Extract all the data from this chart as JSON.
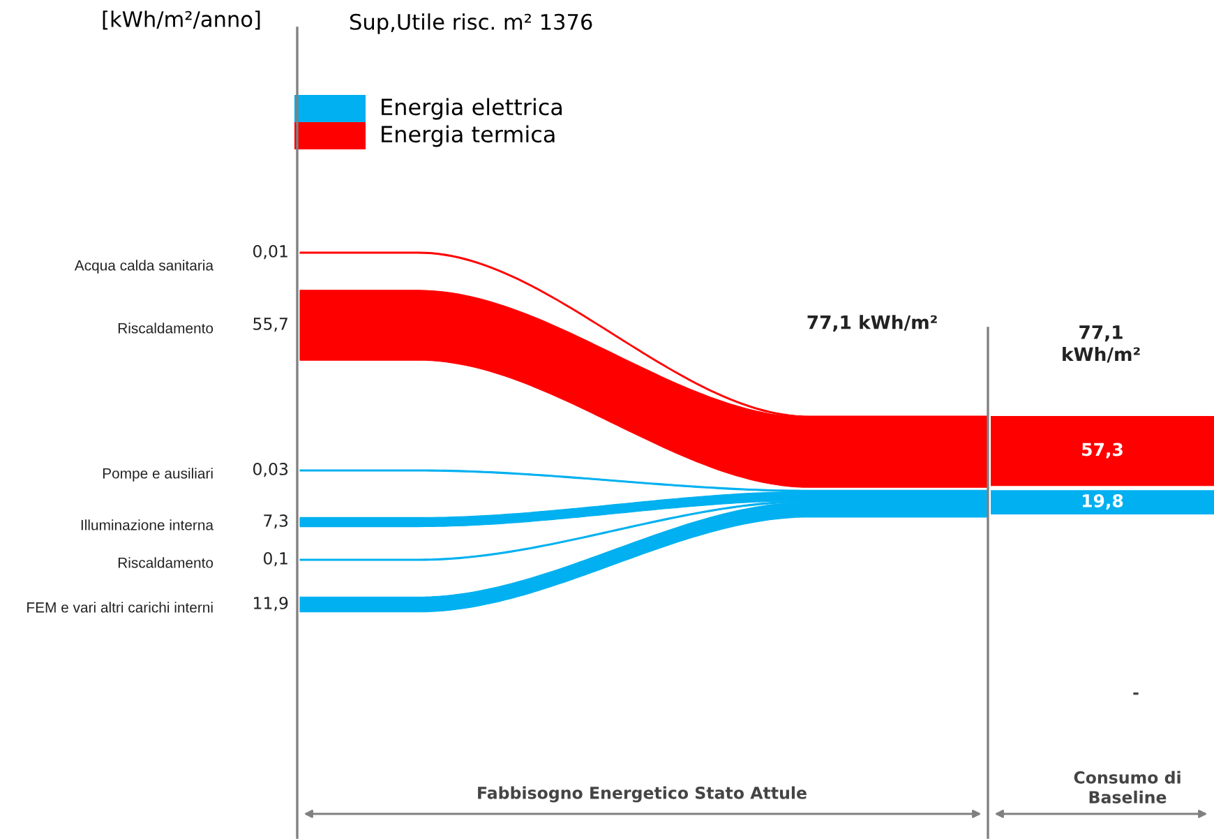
{
  "chart_data": {
    "type": "other",
    "ylabel": "[kWh/m²/anno]",
    "title": "Sup,Utile risc. m² 1376",
    "categories": [
      "Acqua calda sanitaria",
      "Riscaldamento",
      "Pompe e ausiliari",
      "Illuminazione interna",
      "Riscaldamento",
      "FEM e vari altri carichi interni"
    ],
    "series": [
      {
        "name": "Energia elettrica",
        "color": "#00b0f0",
        "values": [
          null,
          null,
          0.03,
          7.3,
          0.1,
          11.9
        ],
        "value_labels": [
          null,
          null,
          "0,03",
          "7,3",
          "0,1",
          "11,9"
        ]
      },
      {
        "name": "Energia termica",
        "color": "#ff0000",
        "values": [
          0.01,
          55.7,
          null,
          null,
          null,
          null
        ],
        "value_labels": [
          "0,01",
          "55,7",
          null,
          null,
          null,
          null
        ]
      }
    ],
    "totals": [
      "19,8",
      "57,3"
    ],
    "annotations": [
      "77,1 kWh/m²",
      "77,1\nkWh/m²",
      "Fabbisogno Energetico Stato Attule",
      "Consumo di\nBaseline",
      "-"
    ],
    "legend": "top left"
  }
}
